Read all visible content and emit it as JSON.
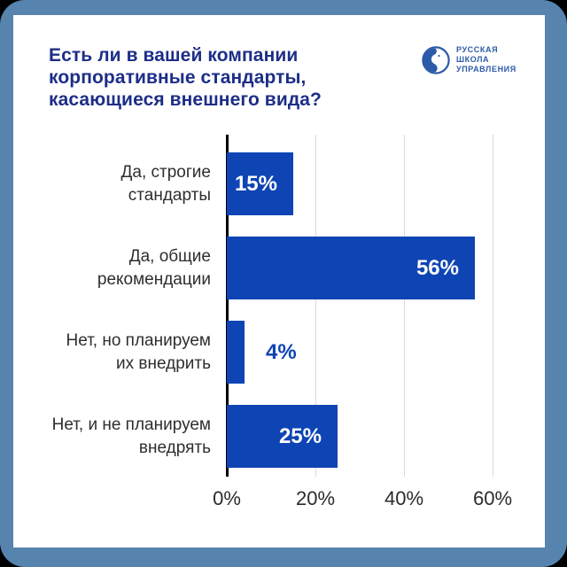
{
  "title": "Есть ли в вашей компании\nкорпоративные стандарты,\nкасающиеся внешнего вида?",
  "logo": {
    "text": "РУССКАЯ\nШКОЛА\nУПРАВЛЕНИЯ",
    "icon": "rshu-profile-circle-icon"
  },
  "colors": {
    "bar": "#0e44b4",
    "title": "#1d2e87",
    "frame": "#5684ae",
    "outside_frame": "#000000",
    "card": "#ffffff",
    "axis": "#000000",
    "gridline": "#d9d9d9",
    "category_text": "#2e2e2e",
    "value_inside": "#ffffff",
    "value_outside": "#0e44b4",
    "logo_blue": "#2c5aa8"
  },
  "chart_data": {
    "type": "bar",
    "orientation": "horizontal",
    "title": "Есть ли в вашей компании корпоративные стандарты, касающиеся внешнего вида?",
    "categories": [
      "Да, строгие\nстандарты",
      "Да, общие\nрекомендации",
      "Нет, но планируем\nих внедрить",
      "Нет, и не планируем\nвнедрять"
    ],
    "values": [
      15,
      56,
      4,
      25
    ],
    "value_labels": [
      "15%",
      "56%",
      "4%",
      "25%"
    ],
    "value_label_placement": [
      "inside",
      "inside",
      "outside",
      "inside"
    ],
    "x_ticks": [
      "0%",
      "20%",
      "40%",
      "60%"
    ],
    "x_tick_values": [
      0,
      20,
      40,
      60
    ],
    "xlim": [
      0,
      64
    ],
    "grid": true,
    "legend": false,
    "xlabel": "",
    "ylabel": ""
  }
}
